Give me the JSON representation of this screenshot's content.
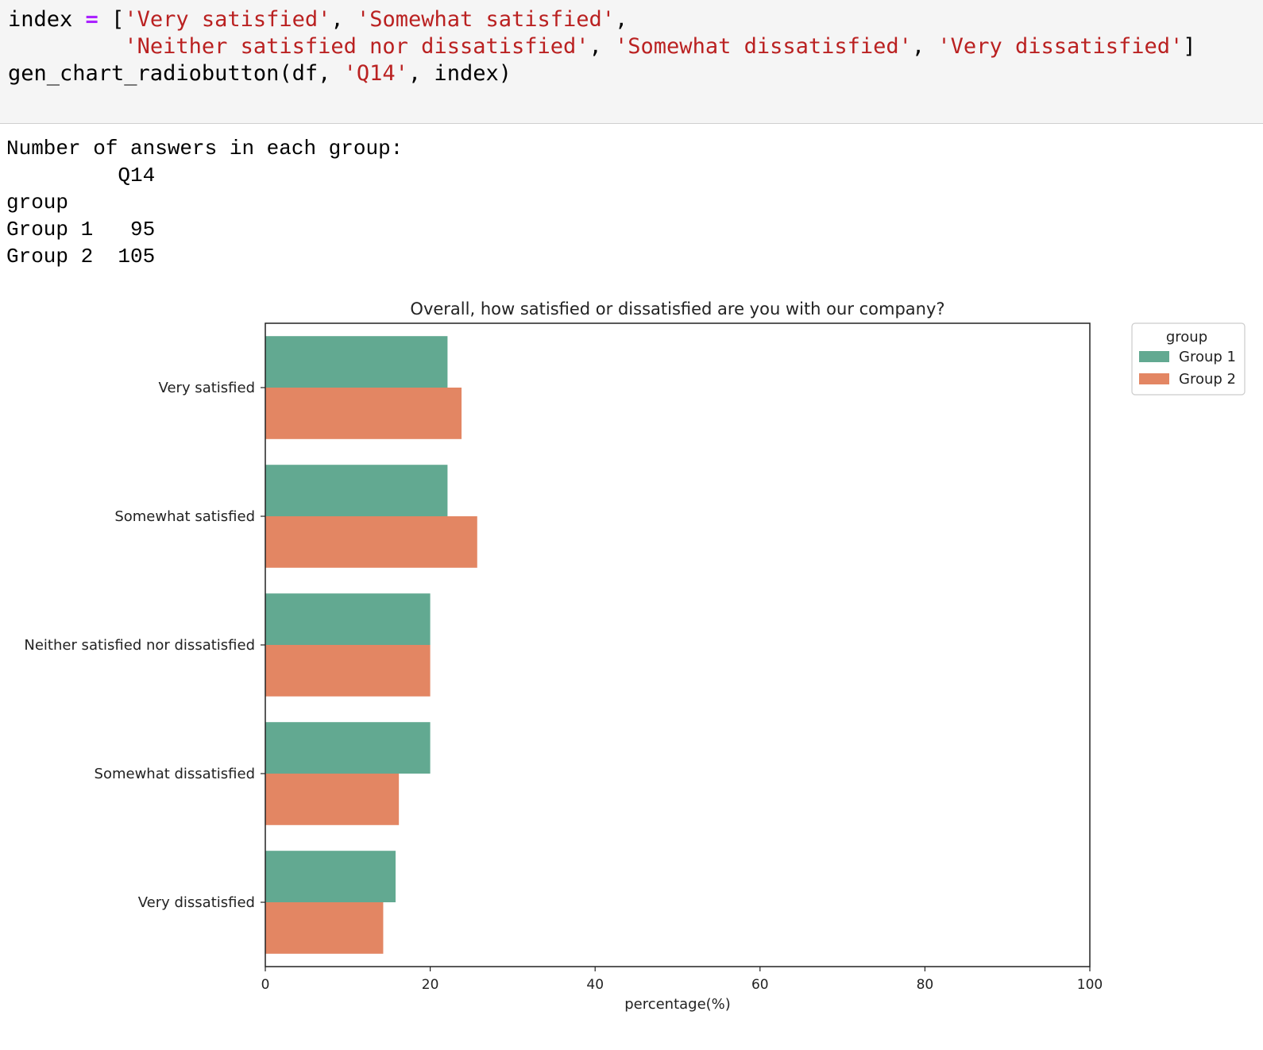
{
  "code": {
    "lines": [
      [
        {
          "t": "index ",
          "c": "pl"
        },
        {
          "t": "=",
          "c": "op"
        },
        {
          "t": " [",
          "c": "pl"
        },
        {
          "t": "'Very satisfied'",
          "c": "str"
        },
        {
          "t": ", ",
          "c": "pl"
        },
        {
          "t": "'Somewhat satisfied'",
          "c": "str"
        },
        {
          "t": ",",
          "c": "pl"
        }
      ],
      [
        {
          "t": "         ",
          "c": "pl"
        },
        {
          "t": "'Neither satisfied nor dissatisfied'",
          "c": "str"
        },
        {
          "t": ", ",
          "c": "pl"
        },
        {
          "t": "'Somewhat dissatisfied'",
          "c": "str"
        },
        {
          "t": ", ",
          "c": "pl"
        },
        {
          "t": "'Very dissatisfied'",
          "c": "str"
        },
        {
          "t": "]",
          "c": "pl"
        }
      ],
      [
        {
          "t": "gen_chart_radiobutton(df, ",
          "c": "pl"
        },
        {
          "t": "'Q14'",
          "c": "str"
        },
        {
          "t": ", index)",
          "c": "pl"
        }
      ]
    ]
  },
  "output": {
    "lines": [
      "Number of answers in each group:",
      "         Q14",
      "group",
      "Group 1   95",
      "Group 2  105"
    ]
  },
  "chart_data": {
    "type": "bar",
    "orientation": "horizontal",
    "title": "Overall, how satisfied or dissatisfied are you with our company?",
    "xlabel": "percentage(%)",
    "ylabel": "",
    "xlim": [
      0,
      100
    ],
    "xticks": [
      0,
      20,
      40,
      60,
      80,
      100
    ],
    "grid": false,
    "categories": [
      "Very satisfied",
      "Somewhat satisfied",
      "Neither satisfied nor dissatisfied",
      "Somewhat dissatisfied",
      "Very dissatisfied"
    ],
    "series": [
      {
        "name": "Group 1",
        "color": "#62a991",
        "values": [
          22.1,
          22.1,
          20.0,
          20.0,
          15.8
        ]
      },
      {
        "name": "Group 2",
        "color": "#e38663",
        "values": [
          23.8,
          25.7,
          20.0,
          16.2,
          14.3
        ]
      }
    ],
    "legend": {
      "title": "group",
      "placement": "outside-top-right"
    }
  }
}
